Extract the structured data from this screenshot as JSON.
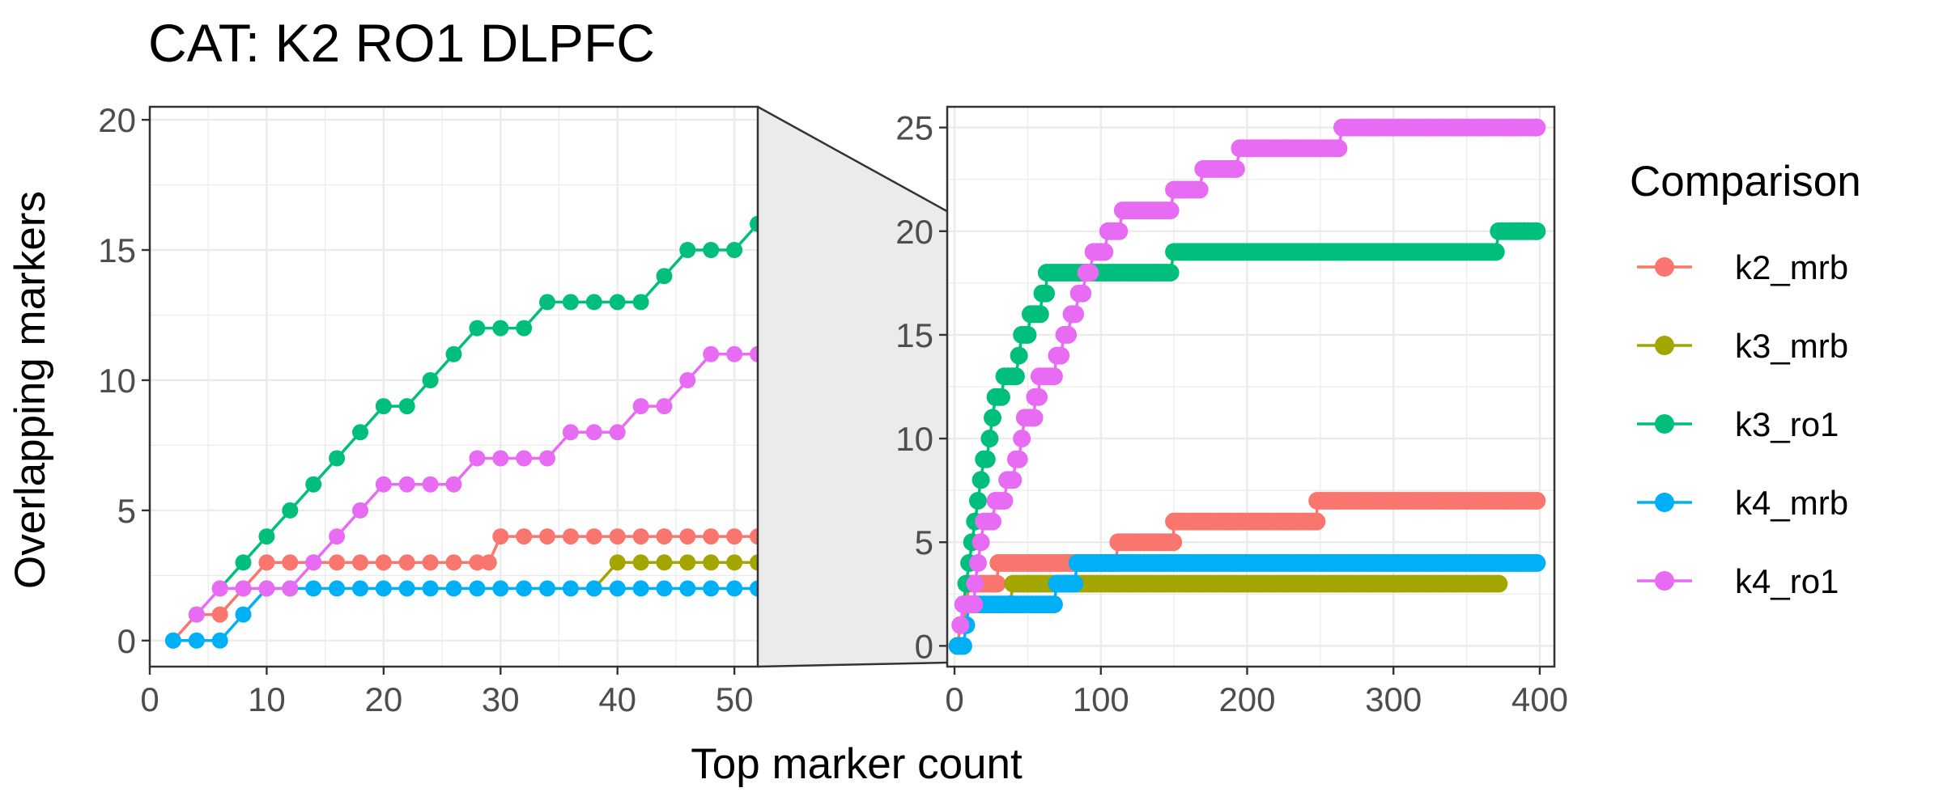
{
  "chart_data": {
    "type": "line",
    "title": "CAT: K2 RO1 DLPFC",
    "xlabel": "Top marker count",
    "ylabel": "Overlapping markers",
    "legend": {
      "title": "Comparison",
      "position": "right",
      "entries": [
        {
          "name": "k2_mrb",
          "color": "#F8766D"
        },
        {
          "name": "k3_mrb",
          "color": "#A3A500"
        },
        {
          "name": "k3_ro1",
          "color": "#00BF7D"
        },
        {
          "name": "k4_mrb",
          "color": "#00B0F6"
        },
        {
          "name": "k4_ro1",
          "color": "#E76BF3"
        }
      ]
    },
    "panels": [
      {
        "name": "zoomed",
        "xlim": [
          0,
          52
        ],
        "ylim": [
          -1,
          20.5
        ],
        "xticks": [
          0,
          10,
          20,
          30,
          40,
          50
        ],
        "yticks": [
          0,
          5,
          10,
          15,
          20
        ],
        "x_labels": [
          "0",
          "10",
          "20",
          "30",
          "40",
          "50"
        ],
        "y_labels": [
          "0",
          "5",
          "10",
          "15",
          "20"
        ]
      },
      {
        "name": "full",
        "xlim": [
          -5,
          410
        ],
        "ylim": [
          -1,
          26
        ],
        "xticks": [
          0,
          100,
          200,
          300,
          400
        ],
        "yticks": [
          0,
          5,
          10,
          15,
          20,
          25
        ],
        "x_labels": [
          "0",
          "100",
          "200",
          "300",
          "400"
        ],
        "y_labels": [
          "0",
          "5",
          "10",
          "15",
          "20",
          "25"
        ]
      }
    ],
    "zoom_region": {
      "x": [
        0,
        52
      ],
      "y": [
        0,
        20
      ]
    },
    "series": [
      {
        "name": "k2_mrb",
        "color": "#F8766D",
        "steps": [
          [
            2,
            0
          ],
          [
            4,
            1
          ],
          [
            6,
            1
          ],
          [
            8,
            2
          ],
          [
            10,
            3
          ],
          [
            29,
            3
          ],
          [
            30,
            4
          ],
          [
            100,
            4
          ],
          [
            112,
            5
          ],
          [
            150,
            6
          ],
          [
            248,
            7
          ],
          [
            398,
            7
          ]
        ]
      },
      {
        "name": "k3_mrb",
        "color": "#A3A500",
        "steps": [
          [
            38,
            2
          ],
          [
            40,
            3
          ],
          [
            372,
            3
          ]
        ]
      },
      {
        "name": "k3_ro1",
        "color": "#00BF7D",
        "steps": [
          [
            6,
            2
          ],
          [
            8,
            3
          ],
          [
            10,
            4
          ],
          [
            12,
            5
          ],
          [
            14,
            6
          ],
          [
            16,
            7
          ],
          [
            18,
            8
          ],
          [
            20,
            9
          ],
          [
            22,
            9
          ],
          [
            24,
            10
          ],
          [
            26,
            11
          ],
          [
            28,
            12
          ],
          [
            30,
            12
          ],
          [
            32,
            12
          ],
          [
            34,
            13
          ],
          [
            40,
            13
          ],
          [
            42,
            13
          ],
          [
            44,
            14
          ],
          [
            46,
            15
          ],
          [
            50,
            15
          ],
          [
            52,
            16
          ],
          [
            54,
            16
          ],
          [
            56,
            16
          ],
          [
            60,
            17
          ],
          [
            63,
            18
          ],
          [
            140,
            18
          ],
          [
            150,
            19
          ],
          [
            370,
            19
          ],
          [
            372,
            20
          ],
          [
            398,
            20
          ]
        ]
      },
      {
        "name": "k4_mrb",
        "color": "#00B0F6",
        "steps": [
          [
            2,
            0
          ],
          [
            6,
            0
          ],
          [
            8,
            1
          ],
          [
            10,
            2
          ],
          [
            38,
            2
          ],
          [
            68,
            2
          ],
          [
            70,
            3
          ],
          [
            82,
            3
          ],
          [
            84,
            4
          ],
          [
            398,
            4
          ]
        ]
      },
      {
        "name": "k4_ro1",
        "color": "#E76BF3",
        "steps": [
          [
            4,
            1
          ],
          [
            6,
            2
          ],
          [
            14,
            3
          ],
          [
            16,
            4
          ],
          [
            18,
            5
          ],
          [
            20,
            6
          ],
          [
            26,
            6
          ],
          [
            28,
            7
          ],
          [
            34,
            7
          ],
          [
            36,
            8
          ],
          [
            40,
            8
          ],
          [
            42,
            9
          ],
          [
            44,
            9
          ],
          [
            46,
            10
          ],
          [
            48,
            11
          ],
          [
            52,
            11
          ],
          [
            55,
            12
          ],
          [
            58,
            13
          ],
          [
            70,
            14
          ],
          [
            75,
            15
          ],
          [
            80,
            16
          ],
          [
            85,
            17
          ],
          [
            90,
            18
          ],
          [
            95,
            19
          ],
          [
            105,
            20
          ],
          [
            115,
            21
          ],
          [
            150,
            22
          ],
          [
            170,
            23
          ],
          [
            195,
            24
          ],
          [
            230,
            24
          ],
          [
            265,
            25
          ],
          [
            398,
            25
          ]
        ]
      }
    ]
  }
}
